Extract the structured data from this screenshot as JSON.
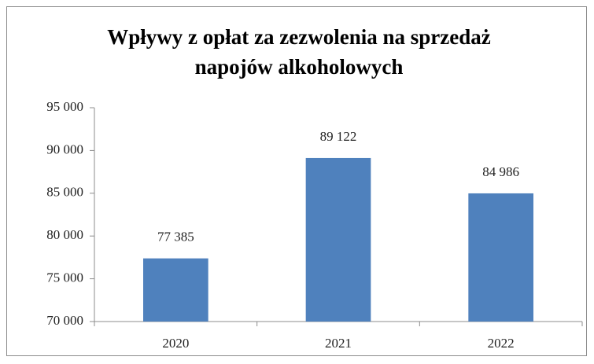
{
  "chart_data": {
    "type": "bar",
    "title": "Wpływy z opłat za zezwolenia na sprzedaż napojów alkoholowych",
    "categories": [
      "2020",
      "2021",
      "2022"
    ],
    "values": [
      77385,
      89122,
      84986
    ],
    "value_labels": [
      "77 385",
      "89 122",
      "84 986"
    ],
    "color": "#4f81bd",
    "ylim": [
      70000,
      95000
    ],
    "yticks": [
      {
        "value": 70000,
        "label": "70 000"
      },
      {
        "value": 75000,
        "label": "75 000"
      },
      {
        "value": 80000,
        "label": "80 000"
      },
      {
        "value": 85000,
        "label": "85 000"
      },
      {
        "value": 90000,
        "label": "90 000"
      },
      {
        "value": 95000,
        "label": "95 000"
      }
    ],
    "grid": false
  }
}
